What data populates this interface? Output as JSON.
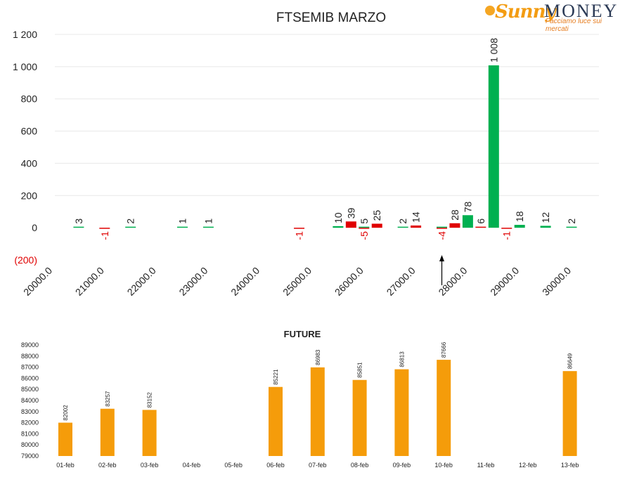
{
  "logo": {
    "brand_a": "Sunny",
    "brand_b": "MONEY",
    "tagline": "Facciamo luce sui mercati"
  },
  "colors": {
    "positive": "#00b050",
    "negative": "#e00000",
    "future": "#f59c0a",
    "grid": "#e8e8e8",
    "text": "#222222",
    "neg_label": "#e00000"
  },
  "chart_data": [
    {
      "type": "bar",
      "title": "FTSEMIB MARZO",
      "ylim": [
        -200,
        1200
      ],
      "yticks": [
        {
          "v": 1200,
          "label": "1 200"
        },
        {
          "v": 1000,
          "label": "1 000"
        },
        {
          "v": 800,
          "label": "800"
        },
        {
          "v": 600,
          "label": "600"
        },
        {
          "v": 400,
          "label": "400"
        },
        {
          "v": 200,
          "label": "200"
        },
        {
          "v": 0,
          "label": "0"
        },
        {
          "v": -200,
          "label": "(200)"
        }
      ],
      "x_tick_labels": [
        "20000.0",
        "21000.0",
        "22000.0",
        "23000.0",
        "24000.0",
        "25000.0",
        "26000.0",
        "27000.0",
        "28000.0",
        "29000.0",
        "30000.0"
      ],
      "grid": true,
      "arrow_at": 27500,
      "series": [
        {
          "color": "positive",
          "values": [
            {
              "x": 20500,
              "v": 3,
              "label": "3"
            },
            {
              "x": 21500,
              "v": 2,
              "label": "2"
            },
            {
              "x": 22500,
              "v": 1,
              "label": "1"
            },
            {
              "x": 23000,
              "v": 1,
              "label": "1"
            },
            {
              "x": 25500,
              "v": 10,
              "label": "10"
            },
            {
              "x": 26000,
              "v": 5,
              "label": "5"
            },
            {
              "x": 26750,
              "v": 2,
              "label": "2"
            },
            {
              "x": 27500,
              "v": 4,
              "label": ""
            },
            {
              "x": 28000,
              "v": 78,
              "label": "78"
            },
            {
              "x": 28500,
              "v": 1008,
              "label": "1 008"
            },
            {
              "x": 29000,
              "v": 18,
              "label": "18"
            },
            {
              "x": 29500,
              "v": 12,
              "label": "12"
            },
            {
              "x": 30000,
              "v": 2,
              "label": "2"
            }
          ]
        },
        {
          "color": "negative",
          "values": [
            {
              "x": 21000,
              "v": -1,
              "label": "-1"
            },
            {
              "x": 24750,
              "v": -1,
              "label": "-1"
            },
            {
              "x": 25750,
              "v": 39,
              "label": "39"
            },
            {
              "x": 26000,
              "v": -5,
              "label": "-5"
            },
            {
              "x": 26250,
              "v": 25,
              "label": "25"
            },
            {
              "x": 27000,
              "v": 14,
              "label": "14"
            },
            {
              "x": 27500,
              "v": -4,
              "label": "-4"
            },
            {
              "x": 27750,
              "v": 28,
              "label": "28"
            },
            {
              "x": 28250,
              "v": 6,
              "label": "6"
            },
            {
              "x": 28750,
              "v": -1,
              "label": "-1"
            }
          ]
        }
      ]
    },
    {
      "type": "bar",
      "title": "FUTURE",
      "ylim": [
        79000,
        89000
      ],
      "yticks": [
        89000,
        88000,
        87000,
        86000,
        85000,
        84000,
        83000,
        82000,
        81000,
        80000,
        79000
      ],
      "categories": [
        "01-feb",
        "02-feb",
        "03-feb",
        "04-feb",
        "05-feb",
        "06-feb",
        "07-feb",
        "08-feb",
        "09-feb",
        "10-feb",
        "11-feb",
        "12-feb",
        "13-feb"
      ],
      "values": [
        82002,
        83257,
        83152,
        null,
        null,
        85221,
        86983,
        85851,
        86813,
        87666,
        null,
        null,
        86649
      ]
    }
  ]
}
